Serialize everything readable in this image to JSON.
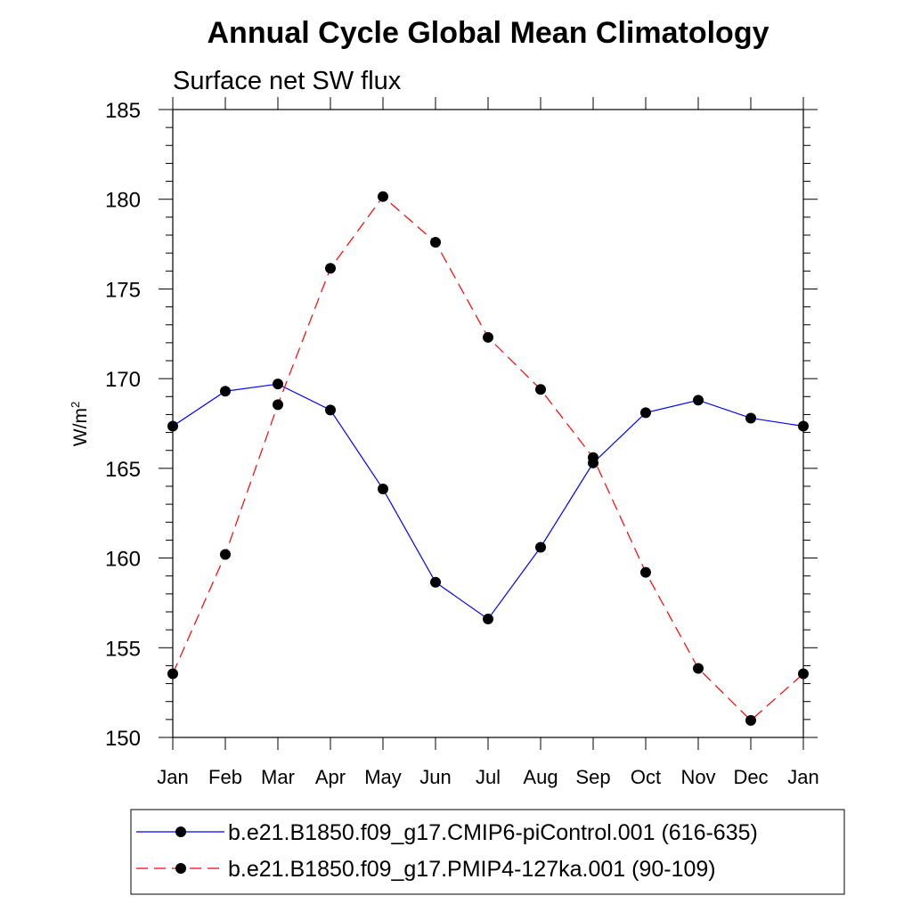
{
  "chart_data": {
    "type": "line",
    "title": "Annual Cycle Global Mean Climatology",
    "subtitle": "Surface net SW flux",
    "ylabel": "W/m",
    "ylabel_sup": "2",
    "ylim": [
      150,
      185
    ],
    "y_major_ticks": [
      "150",
      "155",
      "160",
      "165",
      "170",
      "175",
      "180",
      "185"
    ],
    "y_minor_step": 1,
    "categories": [
      "Jan",
      "Feb",
      "Mar",
      "Apr",
      "May",
      "Jun",
      "Jul",
      "Aug",
      "Sep",
      "Oct",
      "Nov",
      "Dec",
      "Jan"
    ],
    "series": [
      {
        "name": "b.e21.B1850.f09_g17.CMIP6-piControl.001 (616-635)",
        "color": "#0000ff",
        "dash": "solid",
        "marker": "filled-circle",
        "values": [
          167.35,
          169.3,
          169.7,
          168.25,
          163.85,
          158.65,
          156.6,
          160.6,
          165.3,
          168.1,
          168.8,
          167.8,
          167.35
        ]
      },
      {
        "name": "b.e21.B1850.f09_g17.PMIP4-127ka.001 (90-109)",
        "color": "#ff0000",
        "dash": "dashed",
        "marker": "filled-circle",
        "values": [
          153.55,
          160.2,
          168.55,
          176.15,
          180.15,
          177.6,
          172.3,
          169.4,
          165.6,
          159.2,
          153.85,
          150.95,
          153.55
        ]
      }
    ]
  }
}
